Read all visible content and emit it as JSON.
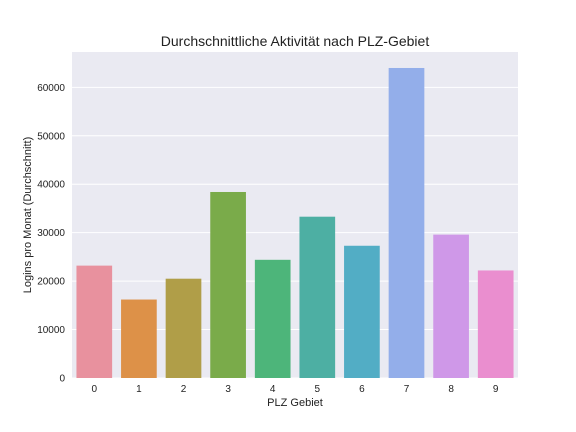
{
  "chart_data": {
    "type": "bar",
    "title": "Durchschnittliche Aktivität nach PLZ-Gebiet",
    "xlabel": "PLZ Gebiet",
    "ylabel": "Logins pro Monat (Durchschnitt)",
    "categories": [
      "0",
      "1",
      "2",
      "3",
      "4",
      "5",
      "6",
      "7",
      "8",
      "9"
    ],
    "values": [
      23200,
      16200,
      20500,
      38400,
      24400,
      33300,
      27300,
      64000,
      29600,
      22200
    ],
    "ylim": [
      0,
      67300
    ],
    "yticks": [
      0,
      10000,
      20000,
      30000,
      40000,
      50000,
      60000
    ],
    "grid": true,
    "colors": [
      "#e8919e",
      "#dd9148",
      "#b09e48",
      "#7aab4a",
      "#4db57a",
      "#4dafa3",
      "#52adc5",
      "#93aeea",
      "#cf98e8",
      "#ea8ecf"
    ],
    "background": "#eaeaf2"
  }
}
